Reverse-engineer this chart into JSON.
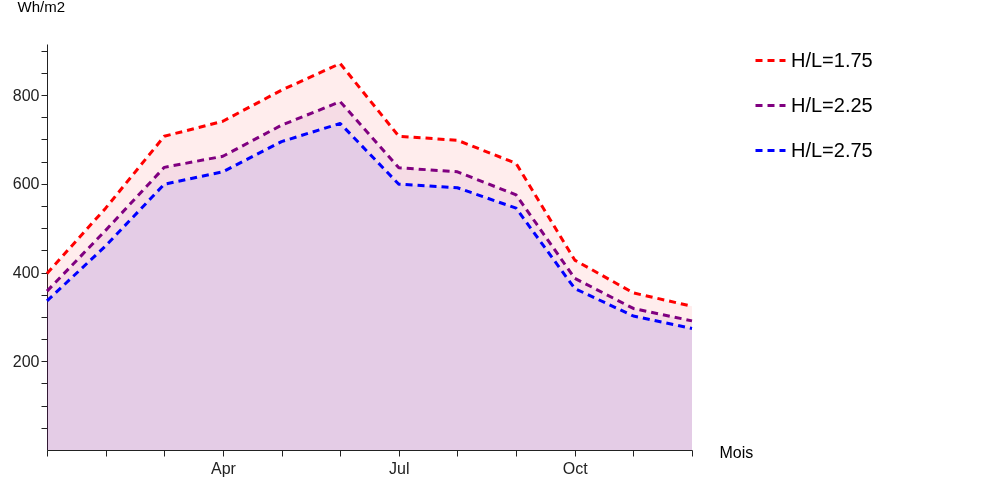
{
  "chart_data": {
    "type": "area",
    "xlabel": "Mois",
    "ylabel": "Wh/m2",
    "categories": [
      null,
      null,
      null,
      "Apr",
      null,
      null,
      "Jul",
      null,
      null,
      "Oct",
      null,
      null
    ],
    "ylim": [
      0,
      915
    ],
    "yticks": [
      {
        "value": 50,
        "label": null
      },
      {
        "value": 100,
        "label": null
      },
      {
        "value": 150,
        "label": null
      },
      200,
      {
        "value": 250,
        "label": null
      },
      {
        "value": 300,
        "label": null
      },
      {
        "value": 350,
        "label": null
      },
      400,
      {
        "value": 450,
        "label": null
      },
      {
        "value": 500,
        "label": null
      },
      {
        "value": 550,
        "label": null
      },
      600,
      {
        "value": 650,
        "label": null
      },
      {
        "value": 700,
        "label": null
      },
      {
        "value": 750,
        "label": null
      },
      800,
      {
        "value": 850,
        "label": null
      },
      {
        "value": 900,
        "label": null
      }
    ],
    "line_style": "dashed",
    "legend": "right",
    "series": [
      {
        "name": "H/L=1.75",
        "color": "#ff0000",
        "values": [
          398,
          545,
          707,
          741,
          811,
          871,
          707,
          698,
          646,
          428,
          354,
          324
        ]
      },
      {
        "name": "H/L=2.25",
        "color": "#800080",
        "values": [
          358,
          495,
          637,
          662,
          732,
          785,
          636,
          627,
          575,
          387,
          319,
          291
        ]
      },
      {
        "name": "H/L=2.75",
        "color": "#0000ff",
        "values": [
          336,
          460,
          599,
          627,
          695,
          736,
          599,
          591,
          545,
          364,
          302,
          274
        ]
      }
    ]
  }
}
